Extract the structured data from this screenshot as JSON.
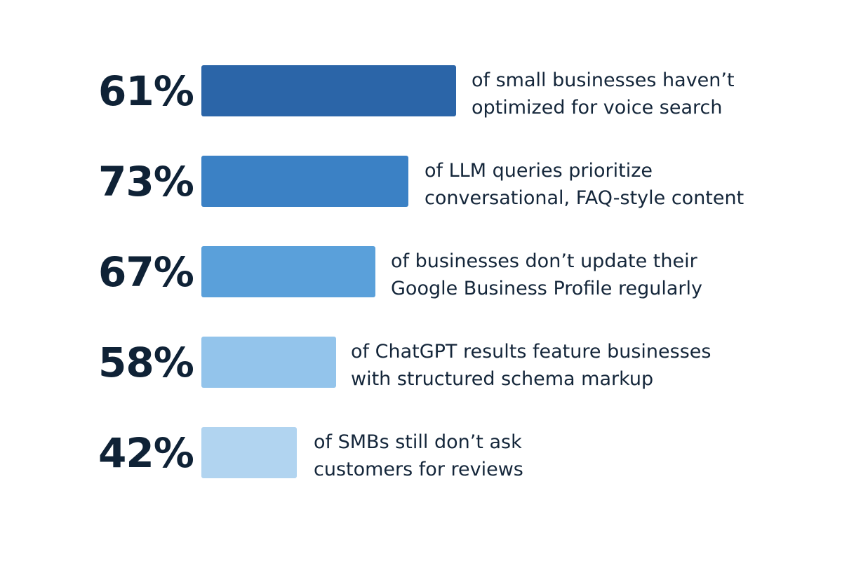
{
  "items": [
    {
      "stat": "61%",
      "lines": [
        "of small businesses haven’t",
        "optimized for voice search"
      ]
    },
    {
      "stat": "73%",
      "lines": [
        "of LLM queries prioritize",
        "conversational, FAQ-style content"
      ]
    },
    {
      "stat": "67%",
      "lines": [
        "of businesses don’t update their",
        "Google Business Profile regularly"
      ]
    },
    {
      "stat": "58%",
      "lines": [
        "of ChatGPT results feature businesses",
        "with structured schema markup"
      ]
    },
    {
      "stat": "42%",
      "lines": [
        "of SMBs still don’t ask",
        "customers for reviews"
      ]
    }
  ]
}
